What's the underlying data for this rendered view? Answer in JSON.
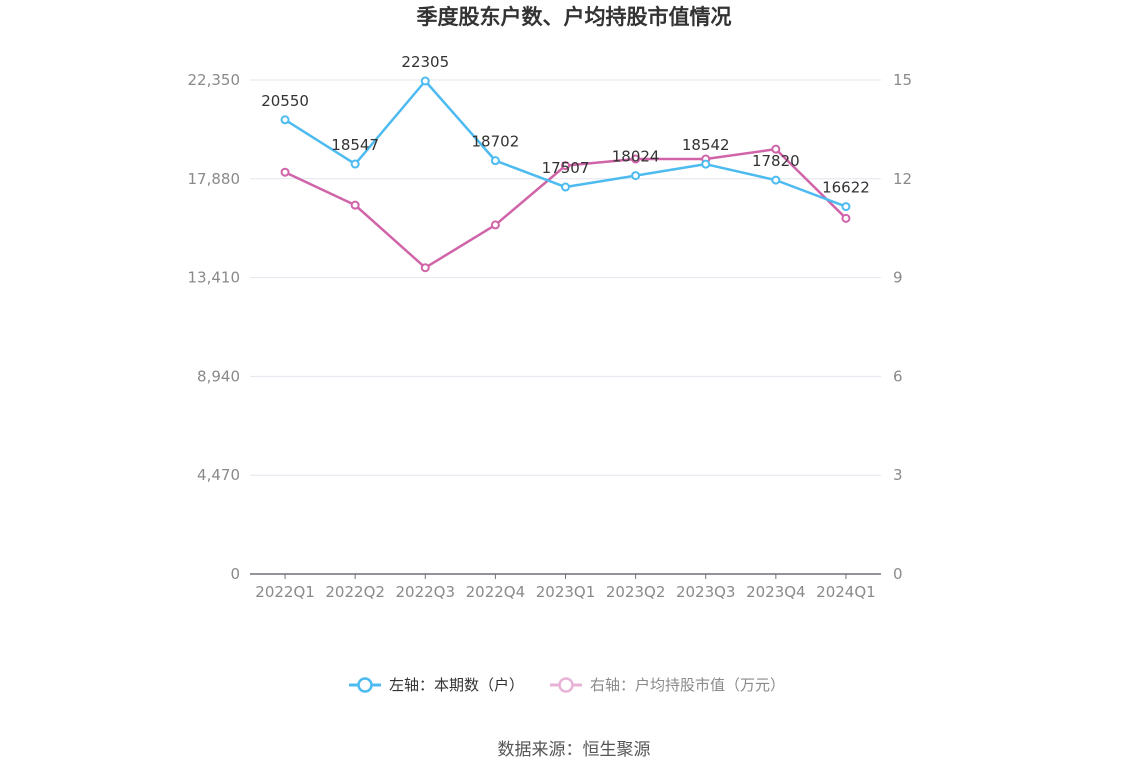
{
  "chart_data": {
    "type": "line",
    "title": "季度股东户数、户均持股市值情况",
    "categories": [
      "2022Q1",
      "2022Q2",
      "2022Q3",
      "2022Q4",
      "2023Q1",
      "2023Q2",
      "2023Q3",
      "2023Q4",
      "2024Q1"
    ],
    "left_axis": {
      "ticks": [
        "0",
        "4,470",
        "8,940",
        "13,410",
        "17,880",
        "22,350"
      ],
      "ylim": [
        0,
        22350
      ]
    },
    "right_axis": {
      "ticks": [
        "0",
        "3",
        "6",
        "9",
        "12",
        "15"
      ],
      "ylim": [
        0,
        15
      ]
    },
    "series": [
      {
        "name": "左轴：本期数（户）",
        "axis": "left",
        "color": "#4dbbf0",
        "values": [
          20550,
          18547,
          22305,
          18702,
          17507,
          18024,
          18542,
          17820,
          16622
        ],
        "labels": [
          "20550",
          "18547",
          "22305",
          "18702",
          "17507",
          "18024",
          "18542",
          "17820",
          "16622"
        ]
      },
      {
        "name": "右轴：户均持股市值（万元）",
        "axis": "right",
        "color": "#d064a8",
        "values": [
          12.2,
          11.2,
          9.3,
          10.6,
          12.4,
          12.6,
          12.6,
          12.9,
          10.8
        ]
      }
    ],
    "grid": true,
    "legend": "bottom-center"
  },
  "source": "数据来源：恒生聚源"
}
